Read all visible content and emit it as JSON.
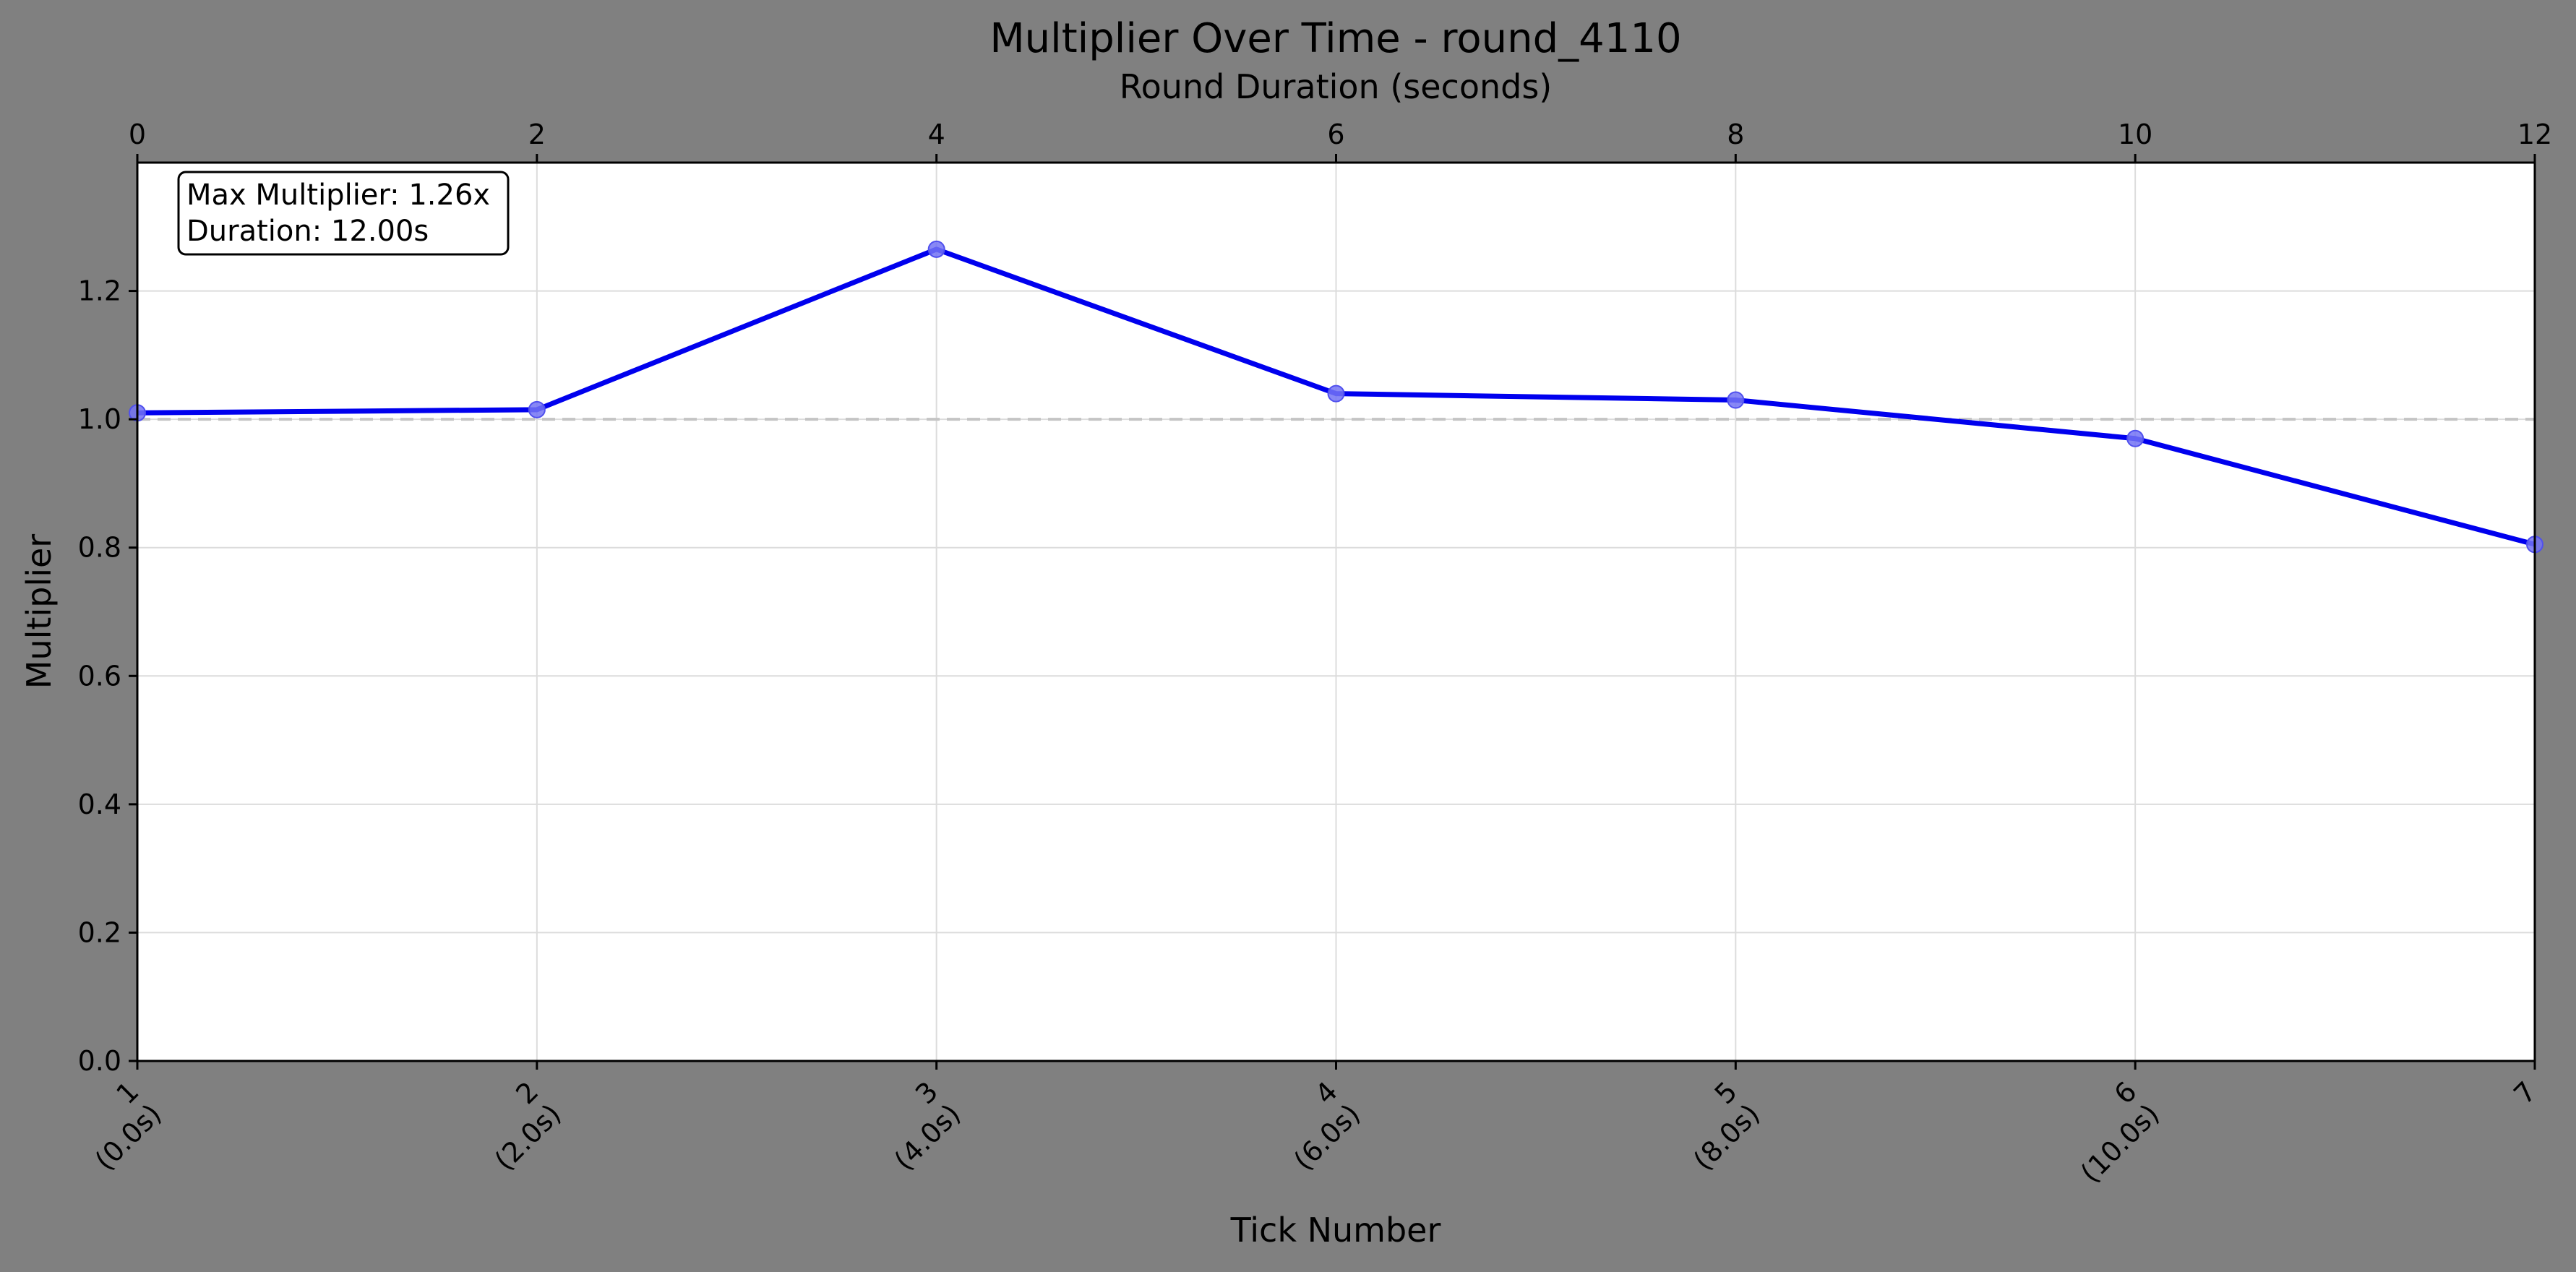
{
  "chart_data": {
    "type": "line",
    "title": "Multiplier Over Time - round_4110",
    "top_xlabel": "Round Duration (seconds)",
    "xlabel": "Tick Number",
    "ylabel": "Multiplier",
    "x": [
      0,
      2,
      4,
      6,
      8,
      10,
      12
    ],
    "xlim": [
      0,
      12
    ],
    "ylim": [
      0,
      1.4
    ],
    "top_ticks": [
      "0",
      "2",
      "4",
      "6",
      "8",
      "10",
      "12"
    ],
    "bottom_ticks": [
      {
        "tick": "1",
        "time": "(0.0s)"
      },
      {
        "tick": "2",
        "time": "(2.0s)"
      },
      {
        "tick": "3",
        "time": "(4.0s)"
      },
      {
        "tick": "4",
        "time": "(6.0s)"
      },
      {
        "tick": "5",
        "time": "(8.0s)"
      },
      {
        "tick": "6",
        "time": "(10.0s)"
      },
      {
        "tick": "7",
        "time": ""
      }
    ],
    "y_ticks": [
      "0.0",
      "0.2",
      "0.4",
      "0.6",
      "0.8",
      "1.0",
      "1.2"
    ],
    "y_tick_values": [
      0,
      0.2,
      0.4,
      0.6,
      0.8,
      1.0,
      1.2
    ],
    "series": [
      {
        "values": [
          1.01,
          1.015,
          1.265,
          1.04,
          1.03,
          0.97,
          0.805
        ]
      }
    ],
    "reference_line": 1.0,
    "annotation": {
      "line1": "Max Multiplier: 1.26x",
      "line2": "Duration: 12.00s"
    },
    "grid": true,
    "colors": {
      "line": "#0000ee",
      "marker": "#7373f5",
      "reference": "#c4c4c4",
      "grid": "#dcdcdc",
      "background": "#808080",
      "plot_bg": "#ffffff"
    }
  }
}
